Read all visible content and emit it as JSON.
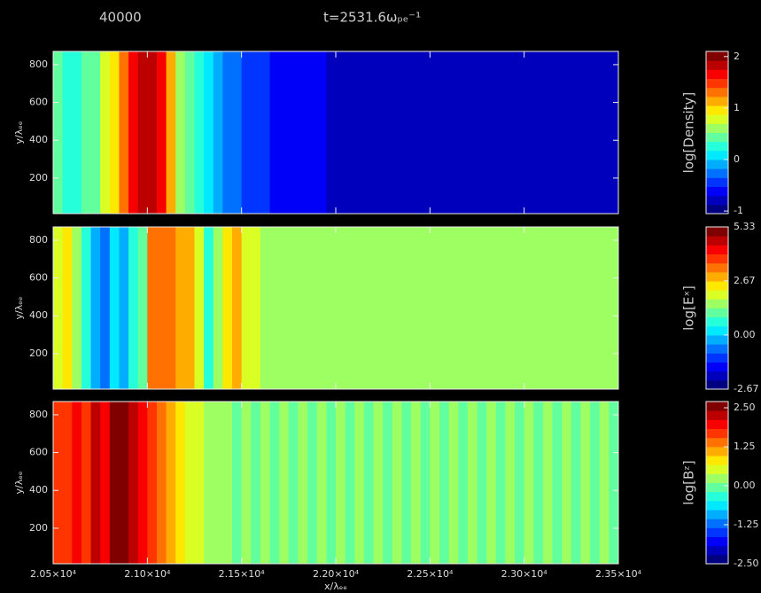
{
  "header": {
    "frame": "40000",
    "title": "t=2531.6ωₚₑ⁻¹"
  },
  "chart_data": [
    {
      "type": "heatmap",
      "ylabel": "y/λₑₑ",
      "colorbar_label": "log[Density]",
      "ylim": [
        12,
        870
      ],
      "yticks": [
        200,
        400,
        600,
        800
      ],
      "clim": [
        -1.05,
        2.1
      ],
      "cticks": [
        -1,
        0,
        1,
        2
      ],
      "x": [
        20525,
        20575,
        20625,
        20675,
        20725,
        20775,
        20825,
        20875,
        20925,
        20975,
        21025,
        21075,
        21125,
        21175,
        21225,
        21275,
        21325,
        21375,
        21425,
        21475,
        21525,
        21575,
        21625,
        21675,
        21725,
        21775,
        21825,
        21875,
        21925,
        21975,
        22025,
        22075,
        22125,
        22175,
        22225,
        22275,
        22325,
        22375,
        22425,
        22475,
        22525,
        22575,
        22625,
        22675,
        22725,
        22775,
        22825,
        22875,
        22925,
        22975,
        23025,
        23075,
        23125,
        23175,
        23225,
        23275,
        23325,
        23375,
        23425,
        23475
      ],
      "values": [
        0.4,
        0.3,
        0.3,
        0.4,
        0.5,
        0.8,
        1.0,
        1.3,
        1.7,
        1.8,
        1.8,
        1.6,
        1.1,
        0.7,
        0.4,
        0.2,
        0.0,
        -0.1,
        -0.2,
        -0.3,
        -0.4,
        -0.5,
        -0.5,
        -0.6,
        -0.6,
        -0.6,
        -0.7,
        -0.7,
        -0.7,
        -0.8,
        -0.8,
        -0.8,
        -0.8,
        -0.8,
        -0.8,
        -0.8,
        -0.8,
        -0.8,
        -0.8,
        -0.8,
        -0.8,
        -0.8,
        -0.8,
        -0.8,
        -0.8,
        -0.8,
        -0.8,
        -0.8,
        -0.8,
        -0.8,
        -0.8,
        -0.8,
        -0.8,
        -0.8,
        -0.8,
        -0.8,
        -0.8,
        -0.8,
        -0.8,
        -0.8
      ]
    },
    {
      "type": "heatmap",
      "ylabel": "y/λₑₑ",
      "colorbar_label": "log[Eˣ]",
      "ylim": [
        12,
        870
      ],
      "yticks": [
        200,
        400,
        600,
        800
      ],
      "clim": [
        -2.67,
        5.33
      ],
      "cticks": [
        -2.67,
        {
          "value": 0,
          "label": "0.00"
        },
        2.67,
        5.33
      ],
      "x": [
        20525,
        20575,
        20625,
        20675,
        20725,
        20775,
        20825,
        20875,
        20925,
        20975,
        21025,
        21075,
        21125,
        21175,
        21225,
        21275,
        21325,
        21375,
        21425,
        21475,
        21525,
        21575,
        21625,
        21675,
        21725,
        21775,
        21825,
        21875,
        21925,
        21975,
        22025,
        22075,
        22125,
        22175,
        22225,
        22275,
        22325,
        22375,
        22425,
        22475,
        22525,
        22575,
        22625,
        22675,
        22725,
        22775,
        22825,
        22875,
        22925,
        22975,
        23025,
        23075,
        23125,
        23175,
        23225,
        23275,
        23325,
        23375,
        23425,
        23475
      ],
      "values": [
        2.0,
        2.5,
        1.5,
        0.5,
        -0.3,
        -0.5,
        0.0,
        -0.2,
        0.5,
        1.0,
        3.2,
        3.5,
        3.3,
        3.0,
        2.8,
        2.0,
        0.5,
        1.5,
        2.5,
        3.0,
        2.0,
        1.8,
        1.6,
        1.5,
        1.6,
        1.5,
        1.4,
        1.5,
        1.6,
        1.5,
        1.4,
        1.5,
        1.5,
        1.6,
        1.5,
        1.4,
        1.5,
        1.5,
        1.6,
        1.5,
        1.4,
        1.5,
        1.5,
        1.6,
        1.5,
        1.4,
        1.5,
        1.5,
        1.6,
        1.5,
        1.4,
        1.5,
        1.5,
        1.6,
        1.5,
        1.4,
        1.5,
        1.5,
        1.6,
        1.5
      ]
    },
    {
      "type": "heatmap",
      "ylabel": "y/λₑₑ",
      "colorbar_label": "log[Bᶻ]",
      "ylim": [
        12,
        870
      ],
      "yticks": [
        200,
        400,
        600,
        800
      ],
      "clim": [
        -2.5,
        2.7
      ],
      "cticks": [
        {
          "value": -2.5,
          "label": "-2.50"
        },
        {
          "value": -1.25,
          "label": "-1.25"
        },
        {
          "value": 0,
          "label": "0.00"
        },
        {
          "value": 1.25,
          "label": "1.25"
        },
        {
          "value": 2.5,
          "label": "2.50"
        }
      ],
      "xlabel": "x/λₑₑ",
      "xlim": [
        20500,
        23500
      ],
      "xticks": [
        {
          "value": 20500,
          "label": "2.05×10⁴"
        },
        {
          "value": 21000,
          "label": "2.10×10⁴"
        },
        {
          "value": 21500,
          "label": "2.15×10⁴"
        },
        {
          "value": 22000,
          "label": "2.20×10⁴"
        },
        {
          "value": 22500,
          "label": "2.25×10⁴"
        },
        {
          "value": 23000,
          "label": "2.30×10⁴"
        },
        {
          "value": 23500,
          "label": "2.35×10⁴"
        }
      ],
      "x": [
        20525,
        20575,
        20625,
        20675,
        20725,
        20775,
        20825,
        20875,
        20925,
        20975,
        21025,
        21075,
        21125,
        21175,
        21225,
        21275,
        21325,
        21375,
        21425,
        21475,
        21525,
        21575,
        21625,
        21675,
        21725,
        21775,
        21825,
        21875,
        21925,
        21975,
        22025,
        22075,
        22125,
        22175,
        22225,
        22275,
        22325,
        22375,
        22425,
        22475,
        22525,
        22575,
        22625,
        22675,
        22725,
        22775,
        22825,
        22875,
        22925,
        22975,
        23025,
        23075,
        23125,
        23175,
        23225,
        23275,
        23325,
        23375,
        23425,
        23475
      ],
      "values": [
        1.6,
        1.8,
        1.9,
        1.8,
        2.2,
        2.1,
        2.6,
        2.6,
        2.3,
        2.0,
        1.7,
        1.3,
        1.0,
        0.9,
        0.6,
        0.4,
        0.2,
        0.1,
        0.1,
        0.0,
        0.1,
        0.0,
        0.1,
        0.0,
        0.1,
        0.0,
        0.1,
        0.0,
        0.1,
        0.0,
        0.1,
        0.0,
        0.1,
        0.0,
        0.1,
        0.0,
        0.1,
        0.0,
        0.1,
        0.0,
        0.1,
        0.0,
        0.1,
        0.0,
        0.1,
        0.0,
        0.1,
        0.0,
        0.1,
        0.0,
        0.1,
        0.0,
        0.1,
        0.0,
        0.1,
        0.0,
        0.1,
        0.0,
        0.1,
        0.0
      ]
    }
  ]
}
